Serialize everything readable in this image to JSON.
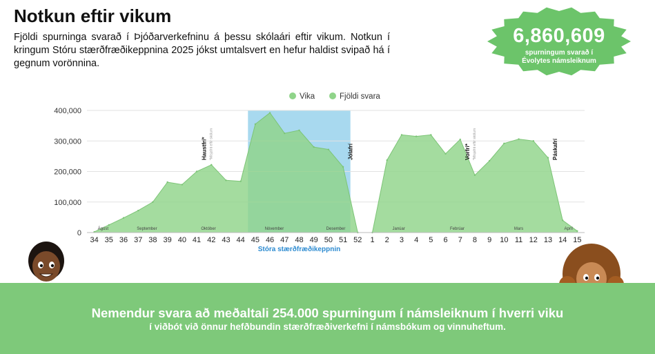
{
  "page": {
    "title": "Notkun eftir vikum",
    "intro": "Fjöldi spurninga svarað í Þjóðarverkefninu á þessu skólaári eftir vikum. Notkun í kringum Stóru stærðfræðikeppnina 2025 jókst umtalsvert en hefur haldist svipað há í gegnum vorönnina."
  },
  "badge": {
    "number": "6,860,609",
    "caption_line1": "spurningum svarað í",
    "caption_line2": "Évolytes námsleiknum"
  },
  "banner": {
    "line1": "Nemendur svara að meðaltali 254.000 spurningum í námsleiknum í hverri viku",
    "line2": "í viðbót við önnur hefðbundin stærðfræðiverkefni í námsbókum og vinnuheftum."
  },
  "colors": {
    "area": "#90d48a",
    "highlight": "#a8d9ef",
    "highlight_label": "#2b8ad0",
    "banner": "#7ec97a",
    "badge": "#6cc46a"
  },
  "chart_data": {
    "type": "area",
    "legend": [
      "Vika",
      "Fjöldi svara"
    ],
    "legend_position": "top-center",
    "categories": [
      "34",
      "35",
      "36",
      "37",
      "38",
      "39",
      "40",
      "41",
      "42",
      "43",
      "44",
      "45",
      "46",
      "47",
      "48",
      "49",
      "50",
      "51",
      "52",
      "1",
      "2",
      "3",
      "4",
      "5",
      "6",
      "7",
      "8",
      "9",
      "10",
      "11",
      "12",
      "13",
      "14",
      "15"
    ],
    "values": [
      2000,
      25000,
      48000,
      72000,
      100000,
      165000,
      157000,
      200000,
      222000,
      171000,
      168000,
      355000,
      392000,
      325000,
      335000,
      280000,
      272000,
      215000,
      0,
      0,
      237000,
      320000,
      315000,
      320000,
      258000,
      305000,
      188000,
      235000,
      292000,
      306000,
      300000,
      245000,
      40000,
      5000
    ],
    "y_ticks": [
      "0",
      "100,000",
      "200,000",
      "300,000",
      "400,000"
    ],
    "ylim": [
      0,
      400000
    ],
    "grid": true,
    "months": [
      "Ágúst",
      "September",
      "Október",
      "Nóvember",
      "Desember",
      "Janúar",
      "Febrúar",
      "Mars",
      "Apríl"
    ],
    "highlight": {
      "from": "45",
      "to": "51",
      "label": "Stóra stærðfræðikeppnin"
    },
    "annotations": [
      {
        "at": "42",
        "label": "Haustfrí*",
        "note": "*Misjafnt eftir skólum"
      },
      {
        "at": "52",
        "label": "Jólafrí",
        "note": ""
      },
      {
        "at": "8",
        "label": "Vorfrí*",
        "note": "*Misjafnt eftir skólum"
      },
      {
        "at": "14",
        "label": "Páskafrí",
        "note": ""
      }
    ]
  }
}
